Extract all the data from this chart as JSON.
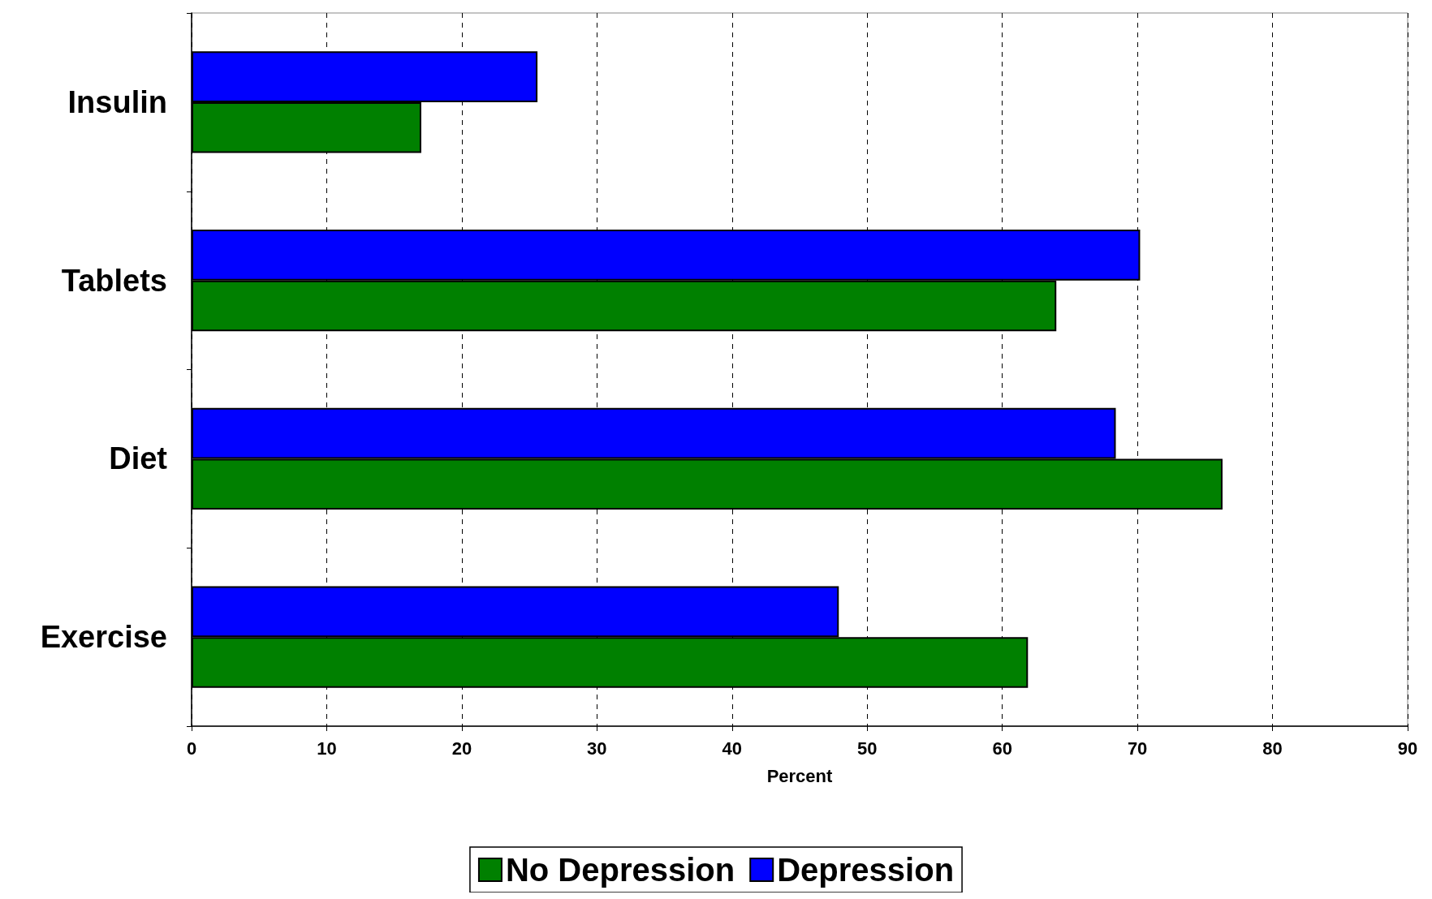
{
  "chart_data": {
    "type": "bar",
    "orientation": "horizontal",
    "xlabel": "Percent",
    "categories": [
      "Insulin",
      "Tablets",
      "Diet",
      "Exercise"
    ],
    "series": [
      {
        "name": "No Depression",
        "color": "#008000",
        "values": [
          17.0,
          64.0,
          76.3,
          61.9
        ]
      },
      {
        "name": "Depression",
        "color": "#0000ff",
        "values": [
          25.6,
          70.2,
          68.4,
          47.9
        ]
      }
    ],
    "xlim": [
      0,
      90
    ],
    "xticks": [
      0,
      10,
      20,
      30,
      40,
      50,
      60,
      70,
      80,
      90
    ],
    "grid": "x",
    "legend": "bottom"
  }
}
